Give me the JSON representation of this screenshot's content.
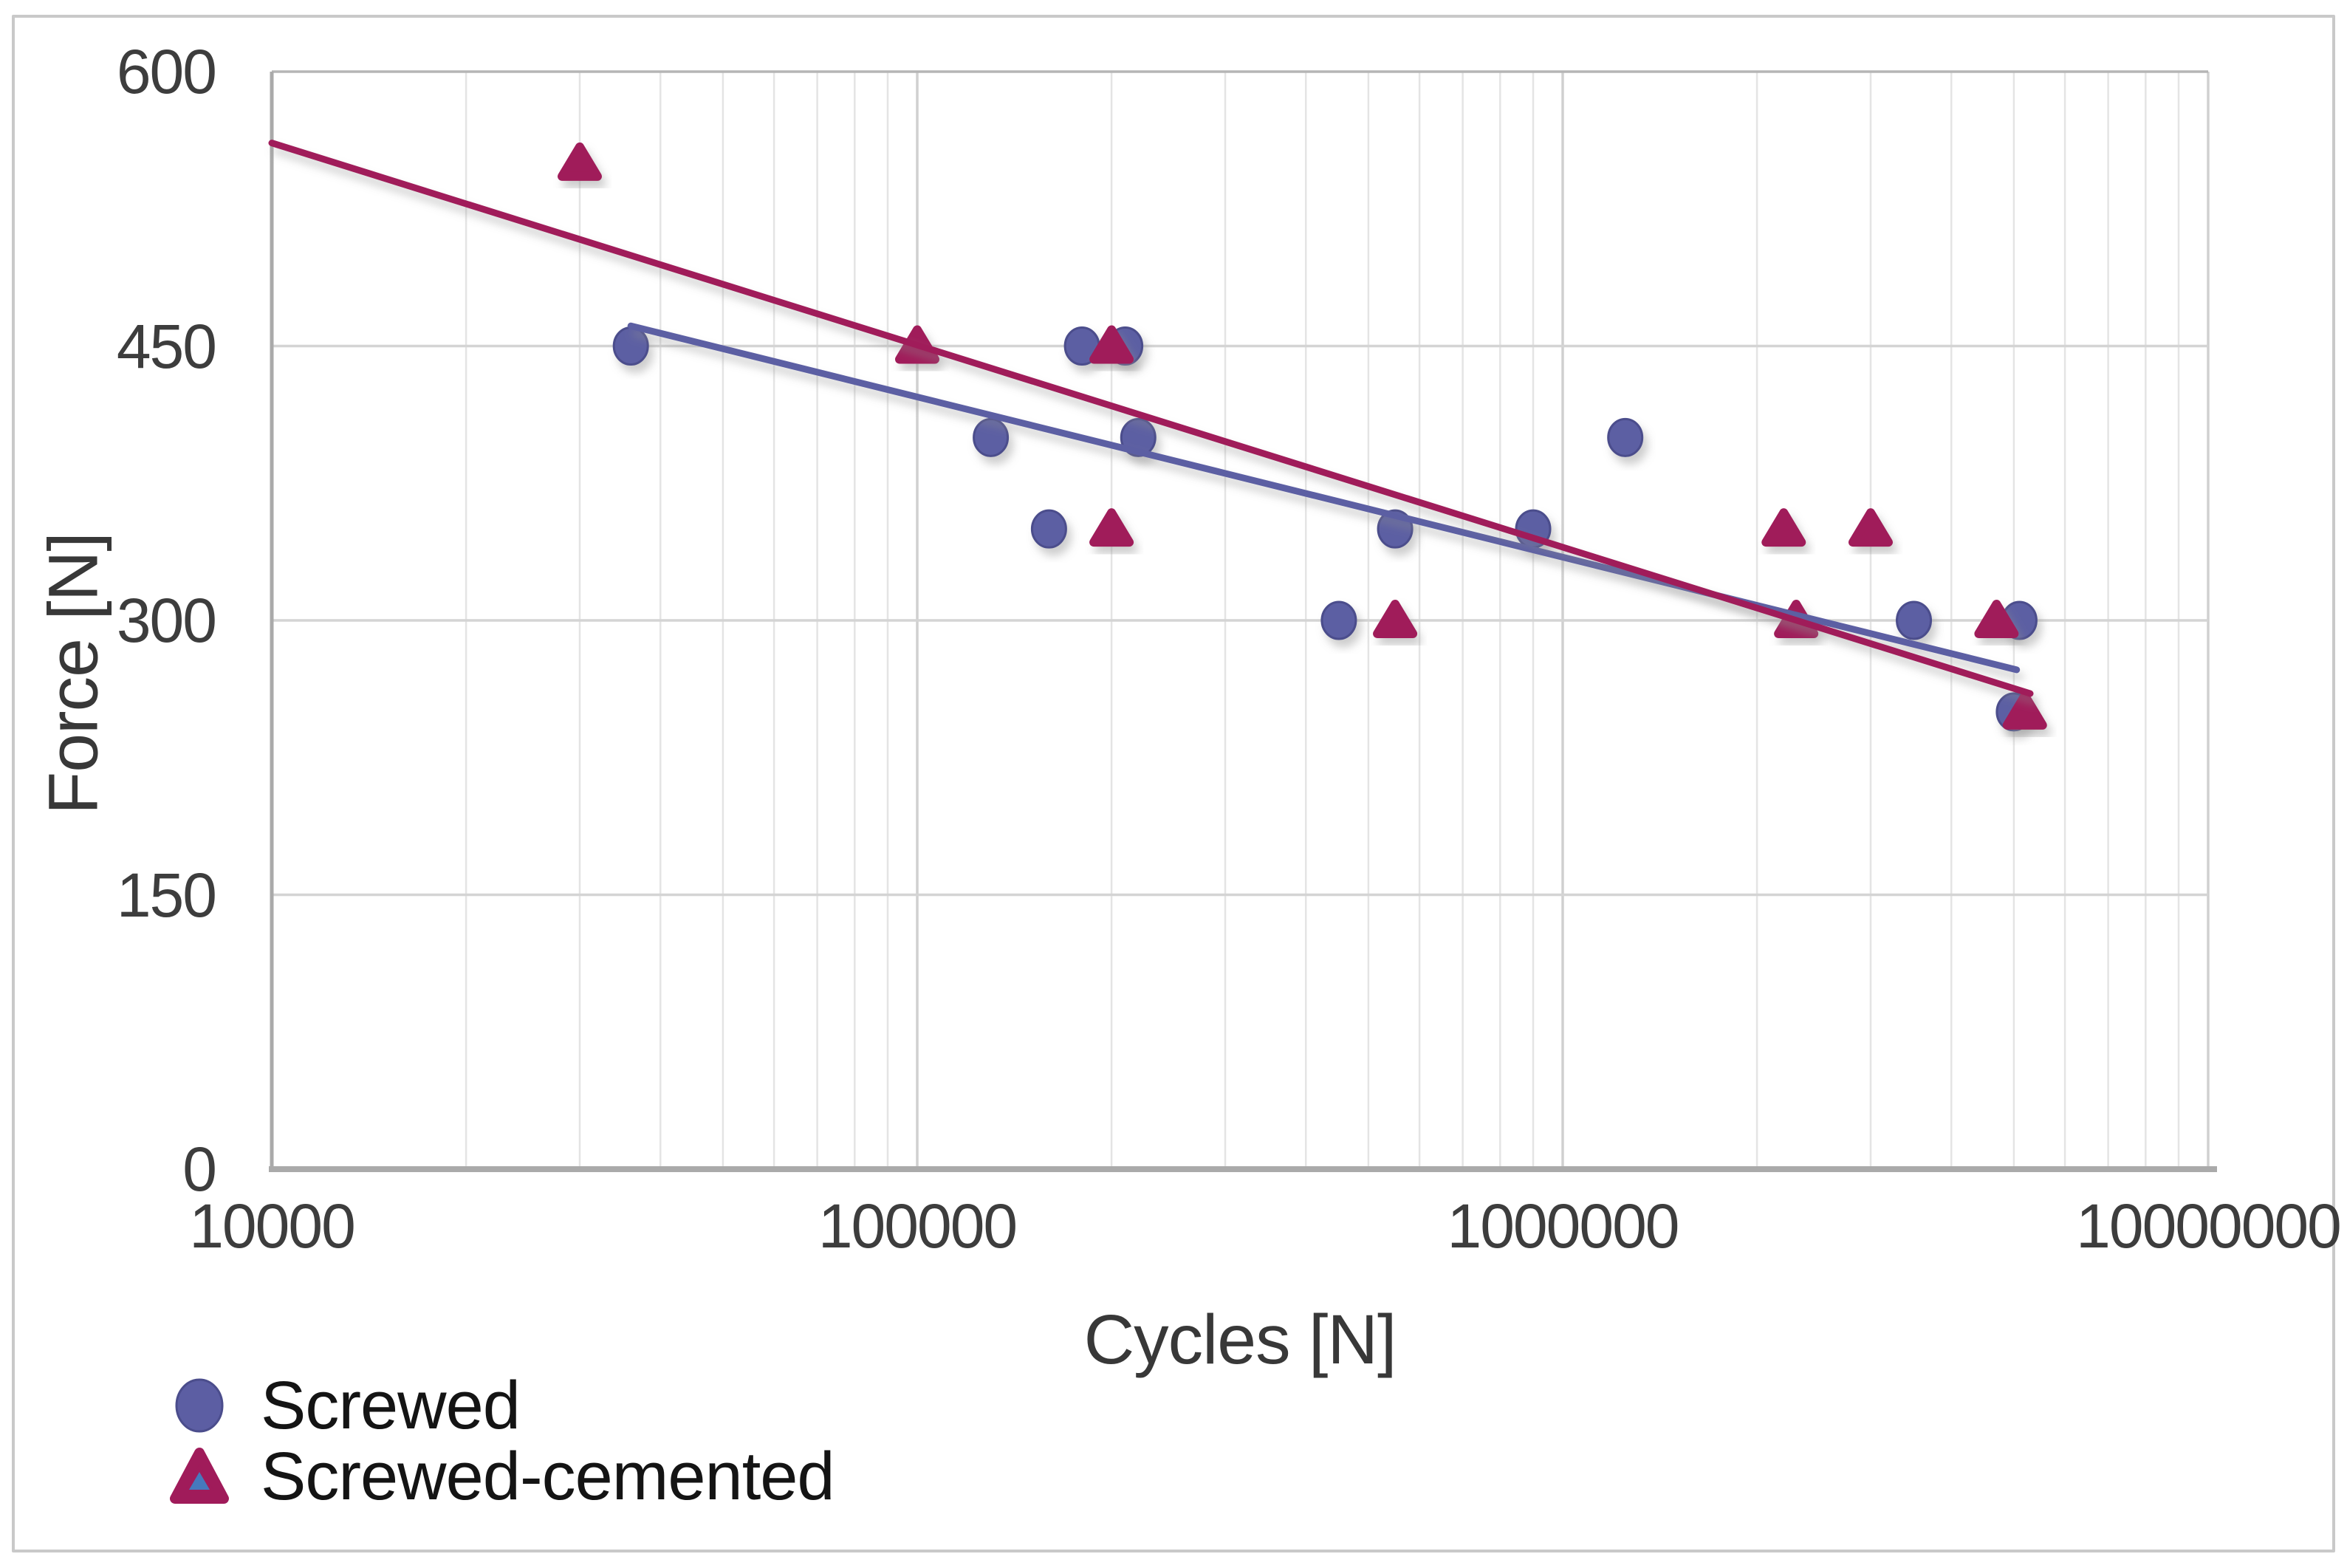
{
  "chart_data": {
    "type": "scatter",
    "title": "",
    "xlabel": "Cycles [N]",
    "ylabel": "Force [N]",
    "x_axis": {
      "scale": "log",
      "range": [
        10000,
        10000000
      ],
      "tick_labels": [
        "10000",
        "100000",
        "1000000",
        "10000000"
      ],
      "tick_values": [
        10000,
        100000,
        1000000,
        10000000
      ],
      "minor_gridlines": true
    },
    "y_axis": {
      "scale": "linear",
      "range": [
        0,
        600
      ],
      "tick_labels": [
        "600",
        "450",
        "300",
        "150",
        "0"
      ],
      "tick_values": [
        600,
        450,
        300,
        150,
        0
      ]
    },
    "grid": true,
    "legend_position": "bottom-left",
    "series": [
      {
        "name": "Screwed",
        "marker": "circle",
        "color": "#5c5ea3",
        "stroke": "#4b4d8c",
        "points": [
          {
            "x": 36000,
            "y": 450
          },
          {
            "x": 130000,
            "y": 400
          },
          {
            "x": 160000,
            "y": 350
          },
          {
            "x": 180000,
            "y": 450
          },
          {
            "x": 210000,
            "y": 450
          },
          {
            "x": 220000,
            "y": 400
          },
          {
            "x": 450000,
            "y": 300
          },
          {
            "x": 550000,
            "y": 350
          },
          {
            "x": 900000,
            "y": 350
          },
          {
            "x": 1250000,
            "y": 400
          },
          {
            "x": 3500000,
            "y": 300
          },
          {
            "x": 5000000,
            "y": 250
          },
          {
            "x": 5100000,
            "y": 300
          }
        ],
        "trendline": {
          "x1": 36000,
          "y1": 461,
          "x2": 5050000,
          "y2": 273
        }
      },
      {
        "name": "Screwed-cemented",
        "marker": "triangle",
        "color": "#a01b5a",
        "stroke": "#8d1750",
        "legend_inner_color": "#4679bd",
        "points": [
          {
            "x": 30000,
            "y": 550
          },
          {
            "x": 100000,
            "y": 450
          },
          {
            "x": 200000,
            "y": 450
          },
          {
            "x": 200000,
            "y": 350
          },
          {
            "x": 550000,
            "y": 300
          },
          {
            "x": 2200000,
            "y": 350
          },
          {
            "x": 2300000,
            "y": 300
          },
          {
            "x": 3000000,
            "y": 350
          },
          {
            "x": 4700000,
            "y": 300
          },
          {
            "x": 5200000,
            "y": 250
          }
        ],
        "trendline": {
          "x1": 10000,
          "y1": 561,
          "x2": 5300000,
          "y2": 260
        }
      }
    ],
    "colors": {
      "minor_grid": "#e4e4e4",
      "major_grid": "#d0d0d0",
      "h_grid": "#d4d4d4",
      "top_grid": "#b5b5b5",
      "axis_line": "#aaaaaa",
      "tick_text": "#3d3d3d",
      "frame_border": "#c9c9c9"
    }
  }
}
